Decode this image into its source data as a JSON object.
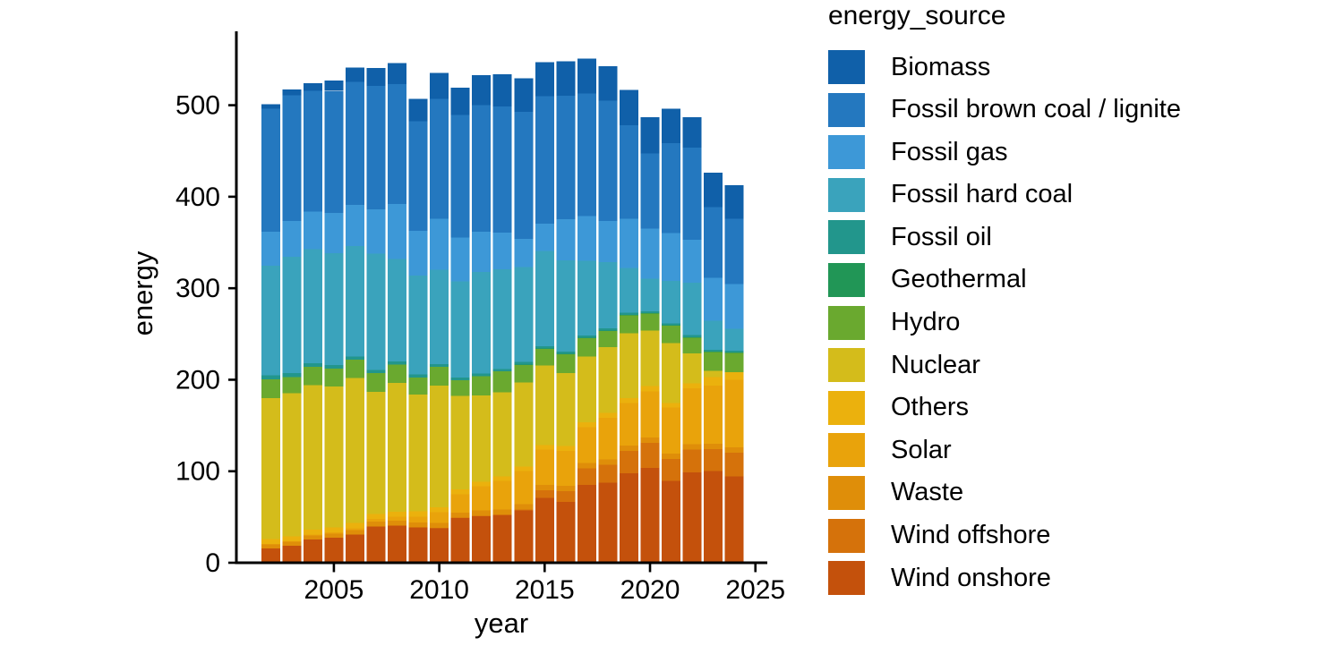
{
  "chart_data": {
    "type": "bar",
    "stacked": true,
    "title": "",
    "xlabel": "year",
    "ylabel": "energy",
    "legend_title": "energy_source",
    "legend_position": "right",
    "grid": false,
    "background": "#FFFFFF",
    "axis_color": "#000000",
    "text_color": "#000000",
    "ylim": [
      0,
      580
    ],
    "xlim": [
      2001.2,
      2025.6
    ],
    "yticks": [
      0,
      100,
      200,
      300,
      400,
      500
    ],
    "xticks": [
      2005,
      2010,
      2015,
      2020,
      2025
    ],
    "years": [
      2002,
      2003,
      2004,
      2005,
      2006,
      2007,
      2008,
      2009,
      2010,
      2011,
      2012,
      2013,
      2014,
      2015,
      2016,
      2017,
      2018,
      2019,
      2020,
      2021,
      2022,
      2023,
      2024
    ],
    "stack_order_bottom_to_top": [
      "Wind onshore",
      "Wind offshore",
      "Waste",
      "Solar",
      "Others",
      "Nuclear",
      "Hydro",
      "Geothermal",
      "Fossil oil",
      "Fossil hard coal",
      "Fossil gas",
      "Fossil brown coal / lignite",
      "Biomass"
    ],
    "series": [
      {
        "name": "Biomass",
        "color": "#1060A9",
        "values": [
          4.8,
          6.3,
          8.3,
          11.5,
          15.5,
          19.5,
          23,
          24.4,
          28.1,
          29.5,
          33,
          35,
          36.5,
          37.2,
          37.5,
          38,
          37.6,
          38.2,
          39.5,
          37.8,
          33,
          38,
          37
        ]
      },
      {
        "name": "Fossil brown coal / lignite",
        "color": "#2478BF",
        "values": [
          134.2,
          137,
          131.9,
          133,
          134.5,
          135,
          131,
          120,
          131,
          134,
          138.4,
          138,
          139,
          139,
          135,
          134,
          131.3,
          102.2,
          81.9,
          98,
          101,
          77,
          71
        ]
      },
      {
        "name": "Fossil gas",
        "color": "#3D98D7",
        "values": [
          37.5,
          39.4,
          41.1,
          44.3,
          45.1,
          48.4,
          60,
          48.9,
          56,
          48,
          44,
          40,
          30.6,
          30,
          45,
          49,
          44.8,
          54.1,
          55,
          52.5,
          46.9,
          47,
          49.1
        ]
      },
      {
        "name": "Fossil hard coal",
        "color": "#3AA3BC",
        "values": [
          119.6,
          127,
          124.6,
          122,
          120.3,
          127,
          112,
          108,
          103,
          105,
          111,
          109,
          104,
          104,
          100,
          81.7,
          72.5,
          48.7,
          35.6,
          46.4,
          57.1,
          32,
          24.2
        ]
      },
      {
        "name": "Fossil oil",
        "color": "#22968C",
        "values": [
          4.5,
          4.4,
          4.2,
          4,
          3.8,
          3.6,
          3.4,
          3.2,
          3,
          2.9,
          2.8,
          2.7,
          2.6,
          2.5,
          2.5,
          2.4,
          2.4,
          2.3,
          2.2,
          2.2,
          2.3,
          1.8,
          1.8
        ]
      },
      {
        "name": "Geothermal",
        "color": "#219656",
        "values": [
          0,
          0,
          0,
          0,
          0,
          0,
          0,
          0,
          0,
          0,
          0,
          0,
          0.1,
          0.1,
          0.2,
          0.2,
          0.2,
          0.2,
          0.2,
          0.2,
          0.2,
          0.2,
          0.2
        ]
      },
      {
        "name": "Hydro",
        "color": "#6AA92F",
        "values": [
          20.5,
          17.6,
          19.6,
          19.4,
          19.8,
          20.7,
          20.1,
          18.8,
          20.6,
          17.3,
          21.2,
          22.7,
          19.5,
          18.7,
          20.5,
          20.2,
          17.9,
          19.9,
          18.6,
          19.4,
          17.5,
          21,
          21
        ]
      },
      {
        "name": "Nuclear",
        "color": "#D4BC1B",
        "values": [
          154.1,
          156.4,
          158.2,
          154.1,
          158.7,
          133.2,
          140.8,
          127.7,
          132.9,
          102.2,
          94.2,
          92.1,
          91.8,
          86.8,
          80,
          72.2,
          72.1,
          71,
          60.9,
          65.4,
          32.8,
          6.7,
          0
        ]
      },
      {
        "name": "Others",
        "color": "#EBB10D",
        "values": [
          5.5,
          5.5,
          5.5,
          5.5,
          5.5,
          5.5,
          5.5,
          5.5,
          5.5,
          5.5,
          5,
          5,
          5,
          5,
          5,
          5,
          5,
          5.5,
          5.5,
          5,
          5.5,
          9,
          8.5
        ]
      },
      {
        "name": "Solar",
        "color": "#E9A30B",
        "values": [
          0.2,
          0.3,
          0.6,
          1.3,
          2.2,
          3.1,
          4.4,
          6.6,
          11.7,
          19.6,
          26.4,
          31,
          36.1,
          38.7,
          38.1,
          39.4,
          45.8,
          46.4,
          50.6,
          50,
          60.8,
          64,
          74
        ]
      },
      {
        "name": "Waste",
        "color": "#DF8E09",
        "values": [
          4.3,
          4.4,
          4.5,
          4.7,
          4.9,
          5.1,
          5.2,
          5.3,
          5.4,
          5.5,
          5.6,
          5.7,
          5.8,
          5.8,
          5.9,
          5.9,
          5.9,
          5.9,
          5.9,
          5.9,
          5.9,
          5.8,
          5.8
        ]
      },
      {
        "name": "Wind offshore",
        "color": "#D5720B",
        "values": [
          0,
          0,
          0,
          0,
          0,
          0,
          0,
          0,
          0.2,
          0.6,
          0.7,
          0.9,
          1.4,
          8.3,
          12.1,
          17.7,
          19.3,
          24.4,
          27.3,
          24,
          24.8,
          24,
          25.7
        ]
      },
      {
        "name": "Wind onshore",
        "color": "#C4510C",
        "values": [
          15.8,
          18.7,
          25.5,
          27.2,
          30.7,
          39.7,
          40.6,
          38.6,
          37.8,
          48.9,
          50.7,
          51.7,
          57,
          70.9,
          66.3,
          85.3,
          87.6,
          97.7,
          103.6,
          89.5,
          99,
          100,
          94.5
        ]
      }
    ]
  }
}
